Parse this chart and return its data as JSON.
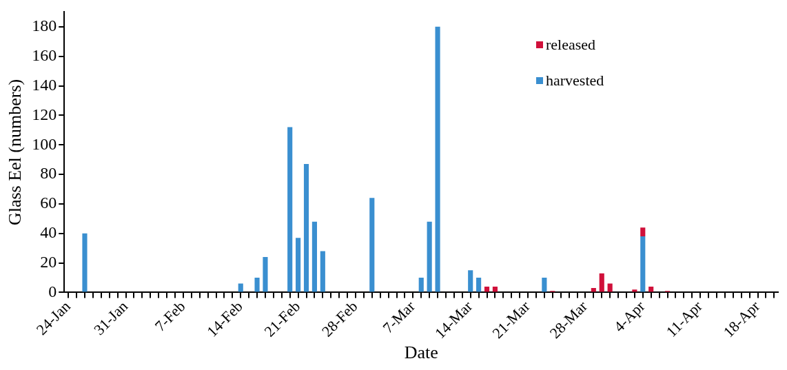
{
  "chart_data": {
    "type": "bar",
    "stacked": true,
    "xlabel": "Date",
    "ylabel": "Glass Eel (numbers)",
    "categories": [
      "24-Jan",
      null,
      null,
      null,
      null,
      null,
      null,
      "31-Jan",
      null,
      null,
      null,
      null,
      null,
      null,
      "7-Feb",
      null,
      null,
      null,
      null,
      null,
      null,
      "14-Feb",
      null,
      null,
      null,
      null,
      null,
      null,
      "21-Feb",
      null,
      null,
      null,
      null,
      null,
      null,
      "28-Feb",
      null,
      null,
      null,
      null,
      null,
      null,
      "7-Mar",
      null,
      null,
      null,
      null,
      null,
      null,
      "14-Mar",
      null,
      null,
      null,
      null,
      null,
      null,
      "21-Mar",
      null,
      null,
      null,
      null,
      null,
      null,
      "28-Mar",
      null,
      null,
      null,
      null,
      null,
      null,
      "4-Apr",
      null,
      null,
      null,
      null,
      null,
      null,
      "11-Apr",
      null,
      null,
      null,
      null,
      null,
      null,
      "18-Apr",
      null,
      null
    ],
    "series": [
      {
        "name": "harvested",
        "color": "#3a8fd0",
        "values": [
          0,
          0,
          40,
          0,
          0,
          0,
          0,
          0,
          0,
          0,
          0,
          0,
          0,
          0,
          0,
          0,
          0,
          0,
          0,
          0,
          0,
          6,
          0,
          10,
          24,
          0,
          0,
          112,
          37,
          87,
          48,
          28,
          0,
          0,
          0,
          0,
          0,
          64,
          0,
          0,
          0,
          0,
          0,
          10,
          48,
          180,
          0,
          0,
          0,
          15,
          10,
          0,
          0,
          0,
          0,
          0,
          0,
          0,
          10,
          0,
          0,
          0,
          0,
          0,
          0,
          0,
          0,
          0,
          0,
          0,
          38,
          0,
          0,
          0,
          0,
          0,
          0,
          0,
          0,
          0,
          0,
          0,
          0,
          0,
          0,
          0,
          0
        ]
      },
      {
        "name": "released",
        "color": "#d0103a",
        "values": [
          0,
          0,
          0,
          0,
          0,
          0,
          0,
          0,
          0,
          0,
          0,
          0,
          0,
          0,
          0,
          0,
          0,
          0,
          0,
          0,
          0,
          0,
          0,
          0,
          0,
          0,
          0,
          0,
          0,
          0,
          0,
          0,
          0,
          0,
          0,
          0,
          0,
          0,
          0,
          0,
          0,
          0,
          0,
          0,
          0,
          0,
          0,
          0,
          0,
          0,
          0,
          4,
          4,
          0,
          0,
          0,
          0,
          0,
          0,
          1,
          0,
          0,
          0,
          0,
          3,
          13,
          6,
          0,
          0,
          2,
          6,
          4,
          0,
          1,
          0,
          0,
          0,
          0,
          0,
          0,
          0,
          0,
          0,
          0,
          0,
          0,
          0
        ]
      }
    ],
    "ylim": [
      0,
      190
    ],
    "yticks": [
      0,
      20,
      40,
      60,
      80,
      100,
      120,
      140,
      160,
      180
    ],
    "grid": false,
    "legend": "top right"
  }
}
